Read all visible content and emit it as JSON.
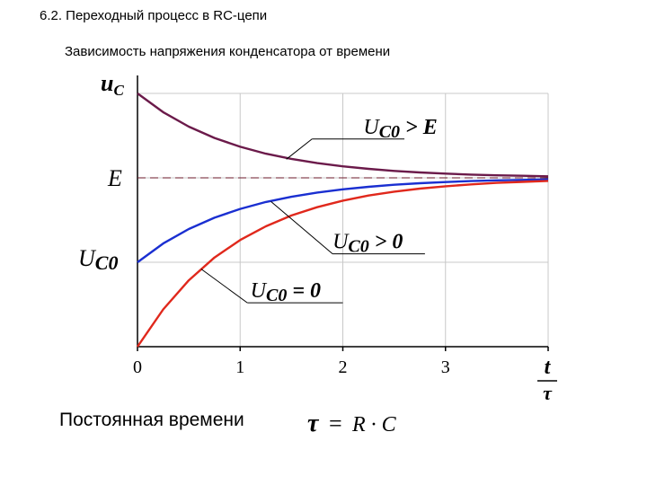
{
  "heading": "6.2. Переходный процесс в RC-цепи",
  "subheading": "Зависимость напряжения конденсатора от времени",
  "footer": {
    "label": "Постоянная времени",
    "formula_tau": "τ",
    "formula_equals": "=",
    "formula_rhs": "R · C"
  },
  "chart_data": {
    "type": "line",
    "y_axis_label": {
      "main": "u",
      "sub": "C"
    },
    "x_axis_label": {
      "numerator": "t",
      "denominator": "τ"
    },
    "x_ticks": [
      "0",
      "1",
      "2",
      "3"
    ],
    "y_ticks": [
      {
        "label": "E",
        "value": 1.0
      },
      {
        "label_main": "U",
        "label_sub": "C0",
        "value": 0.5
      }
    ],
    "xlim": [
      0,
      4
    ],
    "ylim": [
      0,
      1.5
    ],
    "grid": true,
    "reference_line": {
      "label": "E",
      "value": 1.0,
      "style": "dashed"
    },
    "series": [
      {
        "color": "#6b1a4a",
        "annotation": {
          "main": "U",
          "sub": "C0",
          "rest": " > E"
        },
        "x": [
          0,
          0.25,
          0.5,
          0.75,
          1,
          1.25,
          1.5,
          1.75,
          2,
          2.25,
          2.5,
          2.75,
          3,
          3.25,
          3.5,
          3.75,
          4
        ],
        "values": [
          1.5,
          1.389,
          1.303,
          1.236,
          1.184,
          1.143,
          1.112,
          1.087,
          1.068,
          1.053,
          1.041,
          1.032,
          1.025,
          1.019,
          1.015,
          1.012,
          1.009
        ]
      },
      {
        "color": "#1a2fd1",
        "annotation": {
          "main": "U",
          "sub": "C0",
          "rest": " > 0"
        },
        "x": [
          0,
          0.25,
          0.5,
          0.75,
          1,
          1.25,
          1.5,
          1.75,
          2,
          2.25,
          2.5,
          2.75,
          3,
          3.25,
          3.5,
          3.75,
          4
        ],
        "values": [
          0.5,
          0.611,
          0.697,
          0.764,
          0.816,
          0.857,
          0.888,
          0.913,
          0.932,
          0.947,
          0.959,
          0.968,
          0.975,
          0.981,
          0.985,
          0.988,
          0.991
        ]
      },
      {
        "color": "#e0281c",
        "annotation": {
          "main": "U",
          "sub": "C0",
          "rest": " = 0"
        },
        "x": [
          0,
          0.25,
          0.5,
          0.75,
          1,
          1.25,
          1.5,
          1.75,
          2,
          2.25,
          2.5,
          2.75,
          3,
          3.25,
          3.5,
          3.75,
          4
        ],
        "values": [
          0,
          0.221,
          0.393,
          0.528,
          0.632,
          0.713,
          0.777,
          0.826,
          0.865,
          0.895,
          0.918,
          0.936,
          0.95,
          0.961,
          0.97,
          0.976,
          0.982
        ]
      }
    ]
  }
}
